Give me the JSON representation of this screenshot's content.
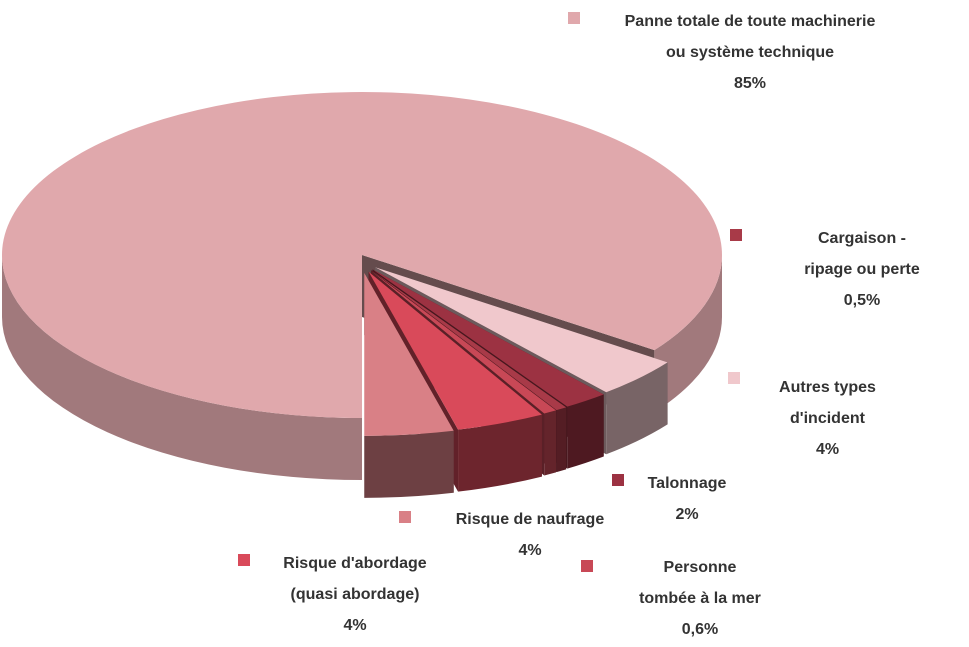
{
  "chart_data": {
    "type": "pie3d",
    "categories": [
      "Panne totale de toute machinerie ou système technique",
      "Autres types d'incident",
      "Talonnage",
      "Cargaison - ripage ou perte",
      "Personne tombée à la mer",
      "Risque d'abordage (quasi abordage)",
      "Risque de naufrage"
    ],
    "values": [
      85,
      4,
      2,
      0.5,
      0.6,
      4,
      4
    ],
    "value_labels": [
      "85%",
      "4%",
      "2%",
      "0,5%",
      "0,6%",
      "4%",
      "4%"
    ],
    "colors": [
      "#e0a8ac",
      "#f0c8cc",
      "#9c3242",
      "#a83a48",
      "#c84856",
      "#d94a5a",
      "#d98086"
    ],
    "legend": true
  }
}
